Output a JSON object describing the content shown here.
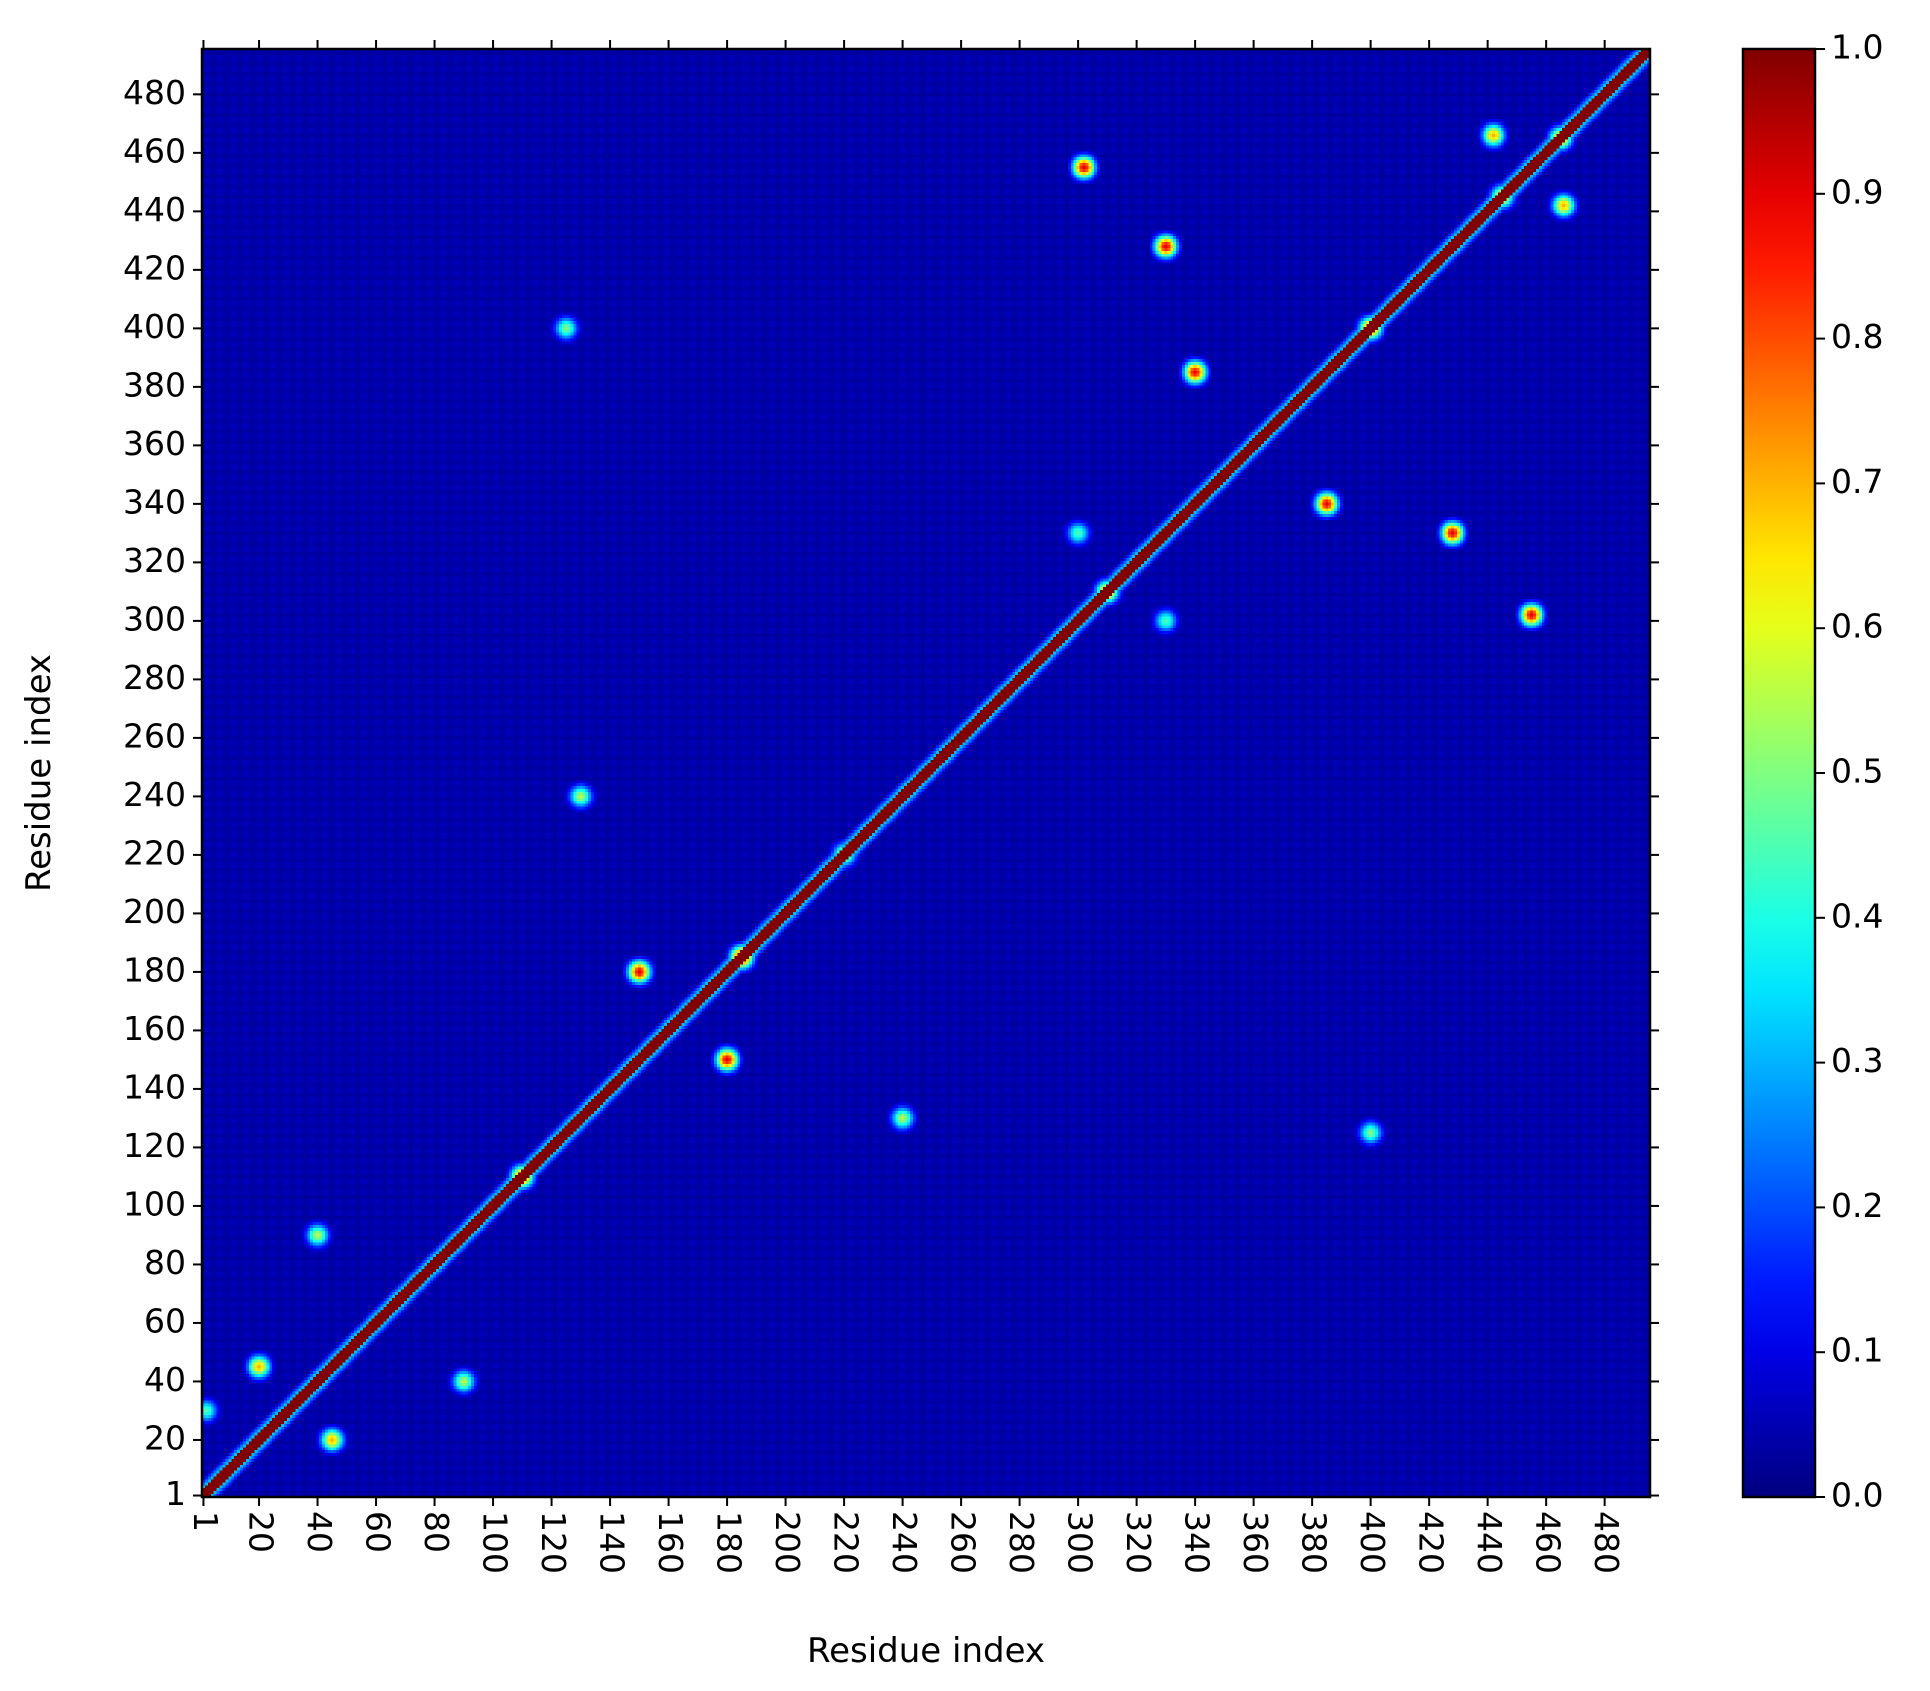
{
  "chart_data": {
    "type": "heatmap",
    "title": "",
    "xlabel": "Residue index",
    "ylabel": "Residue index",
    "n_residues": 495,
    "xlim": [
      1,
      495
    ],
    "ylim": [
      1,
      495
    ],
    "x_ticks": [
      1,
      20,
      40,
      60,
      80,
      100,
      120,
      140,
      160,
      180,
      200,
      220,
      240,
      260,
      280,
      300,
      320,
      340,
      360,
      380,
      400,
      420,
      440,
      460,
      480
    ],
    "y_ticks": [
      1,
      20,
      40,
      60,
      80,
      100,
      120,
      140,
      160,
      180,
      200,
      220,
      240,
      260,
      280,
      300,
      320,
      340,
      360,
      380,
      400,
      420,
      440,
      460,
      480
    ],
    "x_tick_labels": [
      "1",
      "20",
      "40",
      "60",
      "80",
      "100",
      "120",
      "140",
      "160",
      "180",
      "200",
      "220",
      "240",
      "260",
      "280",
      "300",
      "320",
      "340",
      "360",
      "380",
      "400",
      "420",
      "440",
      "460",
      "480"
    ],
    "y_tick_labels": [
      "1",
      "20",
      "40",
      "60",
      "80",
      "100",
      "120",
      "140",
      "160",
      "180",
      "200",
      "220",
      "240",
      "260",
      "280",
      "300",
      "320",
      "340",
      "360",
      "380",
      "400",
      "420",
      "440",
      "460",
      "480"
    ],
    "colorbar": {
      "min": 0.0,
      "max": 1.0,
      "colormap": "jet",
      "ticks": [
        0.0,
        0.1,
        0.2,
        0.3,
        0.4,
        0.5,
        0.6,
        0.7,
        0.8,
        0.9,
        1.0
      ],
      "tick_labels": [
        "0.0",
        "0.1",
        "0.2",
        "0.3",
        "0.4",
        "0.5",
        "0.6",
        "0.7",
        "0.8",
        "0.9",
        "1.0"
      ]
    },
    "background_value": 0.03,
    "diagonal_value": 1.0,
    "hotspots": [
      {
        "i": 2,
        "j": 30,
        "value": 0.45
      },
      {
        "i": 40,
        "j": 90,
        "value": 0.55
      },
      {
        "i": 90,
        "j": 40,
        "value": 0.55
      },
      {
        "i": 45,
        "j": 20,
        "value": 0.7
      },
      {
        "i": 20,
        "j": 45,
        "value": 0.7
      },
      {
        "i": 180,
        "j": 150,
        "value": 0.9
      },
      {
        "i": 150,
        "j": 180,
        "value": 0.9
      },
      {
        "i": 185,
        "j": 185,
        "value": 0.95
      },
      {
        "i": 110,
        "j": 110,
        "value": 0.85
      },
      {
        "i": 130,
        "j": 240,
        "value": 0.55
      },
      {
        "i": 240,
        "j": 130,
        "value": 0.55
      },
      {
        "i": 220,
        "j": 220,
        "value": 0.6
      },
      {
        "i": 300,
        "j": 330,
        "value": 0.45
      },
      {
        "i": 330,
        "j": 300,
        "value": 0.45
      },
      {
        "i": 310,
        "j": 310,
        "value": 0.75
      },
      {
        "i": 302,
        "j": 455,
        "value": 0.9
      },
      {
        "i": 455,
        "j": 302,
        "value": 0.9
      },
      {
        "i": 330,
        "j": 428,
        "value": 0.9
      },
      {
        "i": 428,
        "j": 330,
        "value": 0.9
      },
      {
        "i": 385,
        "j": 340,
        "value": 0.9
      },
      {
        "i": 340,
        "j": 385,
        "value": 0.9
      },
      {
        "i": 400,
        "j": 400,
        "value": 0.85
      },
      {
        "i": 445,
        "j": 445,
        "value": 0.7
      },
      {
        "i": 465,
        "j": 465,
        "value": 0.75
      },
      {
        "i": 442,
        "j": 466,
        "value": 0.7
      },
      {
        "i": 466,
        "j": 442,
        "value": 0.7
      },
      {
        "i": 125,
        "j": 400,
        "value": 0.5
      },
      {
        "i": 400,
        "j": 125,
        "value": 0.5
      }
    ]
  }
}
